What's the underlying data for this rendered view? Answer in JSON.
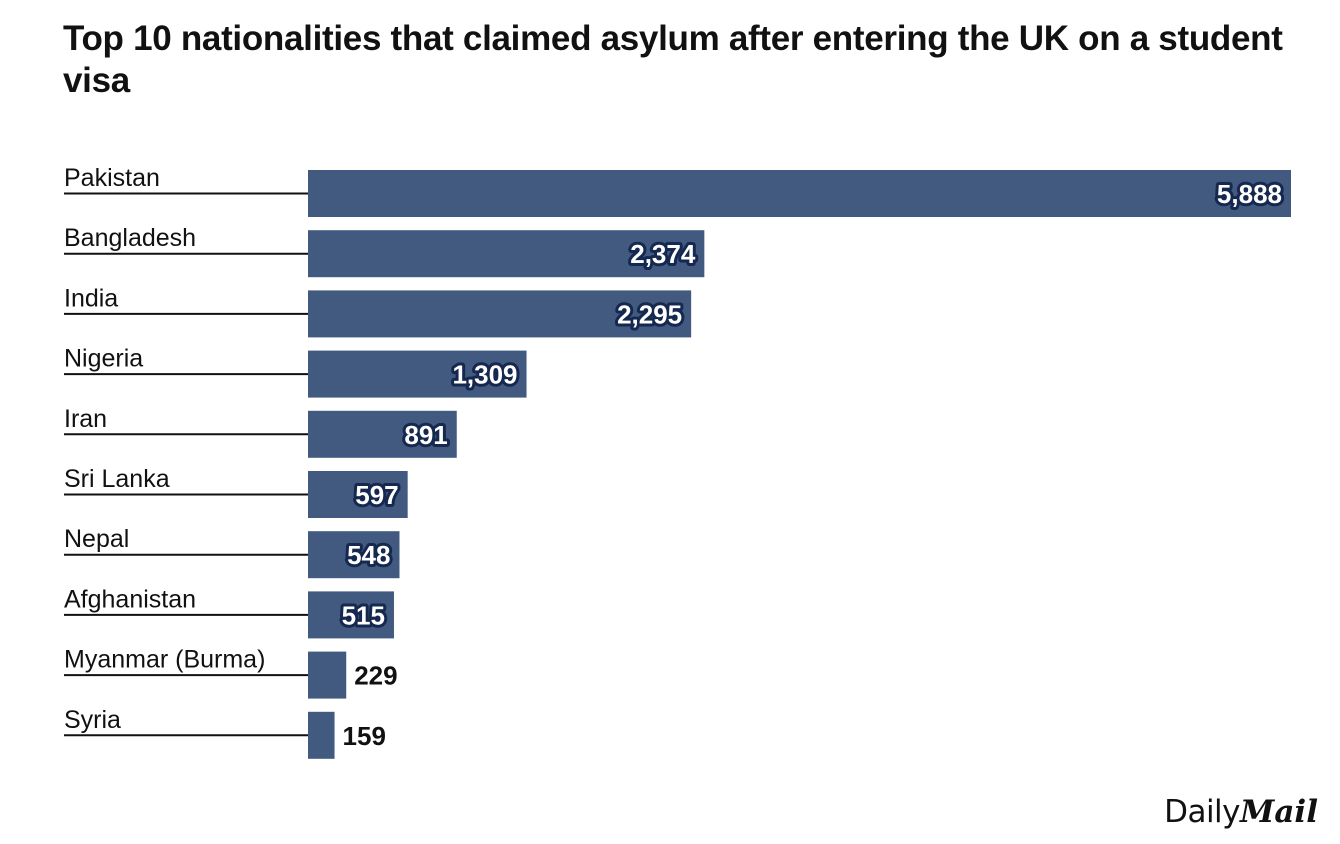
{
  "title": "Top 10 nationalities that claimed asylum after entering the UK on a student visa",
  "brand": {
    "daily": "Daily",
    "mail": "Mail"
  },
  "colors": {
    "bar": "#425a80",
    "label_outline": "#15284f",
    "text": "#111111"
  },
  "chart_data": {
    "type": "bar",
    "orientation": "horizontal",
    "title": "Top 10 nationalities that claimed asylum after entering the UK on a student visa",
    "categories": [
      "Pakistan",
      "Bangladesh",
      "India",
      "Nigeria",
      "Iran",
      "Sri Lanka",
      "Nepal",
      "Afghanistan",
      "Myanmar (Burma)",
      "Syria"
    ],
    "values": [
      5888,
      2374,
      2295,
      1309,
      891,
      597,
      548,
      515,
      229,
      159
    ],
    "value_labels": [
      "5,888",
      "2,374",
      "2,295",
      "1,309",
      "891",
      "597",
      "548",
      "515",
      "229",
      "159"
    ],
    "xlabel": "",
    "ylabel": "",
    "xlim": [
      0,
      5888
    ],
    "grid": false,
    "legend": "none"
  }
}
